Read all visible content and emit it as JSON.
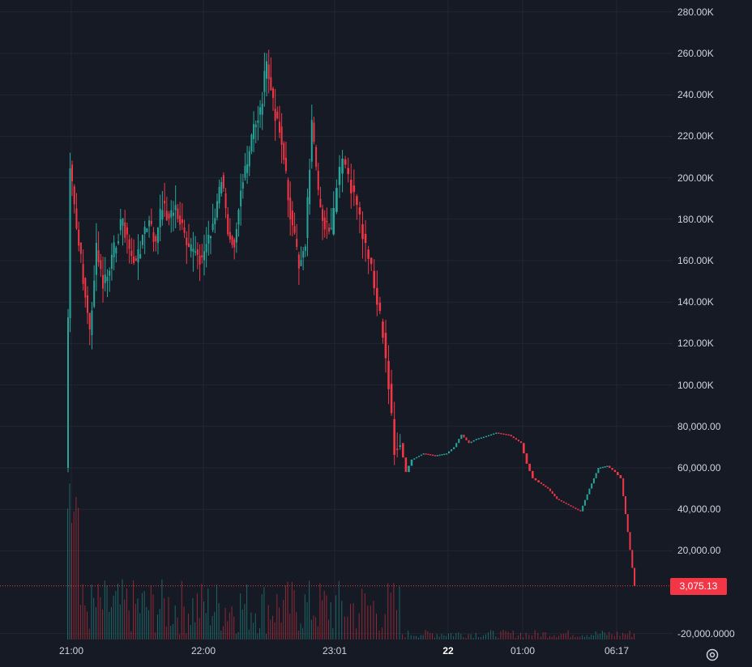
{
  "chart_data": {
    "type": "candlestick",
    "ylim": [
      -20000,
      290000
    ],
    "y_tick_labels": [
      {
        "value": 280000,
        "label": "280.00K"
      },
      {
        "value": 260000,
        "label": "260.00K"
      },
      {
        "value": 240000,
        "label": "240.00K"
      },
      {
        "value": 220000,
        "label": "220.00K"
      },
      {
        "value": 200000,
        "label": "200.00K"
      },
      {
        "value": 180000,
        "label": "180.00K"
      },
      {
        "value": 160000,
        "label": "160.00K"
      },
      {
        "value": 140000,
        "label": "140.00K"
      },
      {
        "value": 120000,
        "label": "120.00K"
      },
      {
        "value": 100000,
        "label": "100.00K"
      },
      {
        "value": 80000,
        "label": "80,000.00"
      },
      {
        "value": 60000,
        "label": "60,000.00"
      },
      {
        "value": 40000,
        "label": "40,000.00"
      },
      {
        "value": 20000,
        "label": "20,000.00"
      },
      {
        "value": -20000,
        "label": "-20,000.0000"
      }
    ],
    "x_tick_labels": [
      {
        "label": "21:00",
        "time": "21:00",
        "bold": false
      },
      {
        "label": "22:00",
        "time": "22:00",
        "bold": false
      },
      {
        "label": "23:01",
        "time": "23:01",
        "bold": false
      },
      {
        "label": "22",
        "time": "00:00",
        "bold": true
      },
      {
        "label": "01:00",
        "time": "01:00",
        "bold": false
      },
      {
        "label": "06:17",
        "time": "06:17",
        "bold": false
      }
    ],
    "last_price": 3075.13,
    "last_price_label": "3,075.13",
    "grid": true,
    "colors": {
      "up": "#26a69a",
      "down": "#f23645",
      "background": "#161a25",
      "grid": "#232632",
      "text": "#d1d4dc"
    },
    "price_path": [
      [
        "20:58",
        60000
      ],
      [
        "21:00",
        205000
      ],
      [
        "21:03",
        175000
      ],
      [
        "21:06",
        152000
      ],
      [
        "21:09",
        125000
      ],
      [
        "21:12",
        165000
      ],
      [
        "21:15",
        148000
      ],
      [
        "21:18",
        155000
      ],
      [
        "21:21",
        170000
      ],
      [
        "21:24",
        180000
      ],
      [
        "21:27",
        165000
      ],
      [
        "21:30",
        158000
      ],
      [
        "21:33",
        172000
      ],
      [
        "21:36",
        178000
      ],
      [
        "21:39",
        168000
      ],
      [
        "21:42",
        188000
      ],
      [
        "21:45",
        180000
      ],
      [
        "21:48",
        186000
      ],
      [
        "21:51",
        175000
      ],
      [
        "21:54",
        163000
      ],
      [
        "21:57",
        166000
      ],
      [
        "22:00",
        160000
      ],
      [
        "22:03",
        172000
      ],
      [
        "22:06",
        180000
      ],
      [
        "22:09",
        200000
      ],
      [
        "22:12",
        175000
      ],
      [
        "22:15",
        170000
      ],
      [
        "22:18",
        195000
      ],
      [
        "22:21",
        205000
      ],
      [
        "22:24",
        225000
      ],
      [
        "22:27",
        232000
      ],
      [
        "22:30",
        255000
      ],
      [
        "22:33",
        235000
      ],
      [
        "22:36",
        225000
      ],
      [
        "22:39",
        200000
      ],
      [
        "22:42",
        175000
      ],
      [
        "22:45",
        158000
      ],
      [
        "22:48",
        170000
      ],
      [
        "22:51",
        225000
      ],
      [
        "22:54",
        190000
      ],
      [
        "22:57",
        178000
      ],
      [
        "23:00",
        172000
      ],
      [
        "23:03",
        195000
      ],
      [
        "23:06",
        208000
      ],
      [
        "23:09",
        200000
      ],
      [
        "23:12",
        190000
      ],
      [
        "23:15",
        178000
      ],
      [
        "23:18",
        165000
      ],
      [
        "23:21",
        155000
      ],
      [
        "23:24",
        138000
      ],
      [
        "23:27",
        125000
      ],
      [
        "23:30",
        100000
      ],
      [
        "23:33",
        70000
      ],
      [
        "23:36",
        72000
      ],
      [
        "23:39",
        58000
      ],
      [
        "23:42",
        64000
      ],
      [
        "23:48",
        67000
      ],
      [
        "23:54",
        66000
      ],
      [
        "00:00",
        67000
      ],
      [
        "00:06",
        70000
      ],
      [
        "00:12",
        76000
      ],
      [
        "00:18",
        72000
      ],
      [
        "00:24",
        74000
      ],
      [
        "00:30",
        75000
      ],
      [
        "00:40",
        77000
      ],
      [
        "00:50",
        76000
      ],
      [
        "01:00",
        72000
      ],
      [
        "01:20",
        62000
      ],
      [
        "01:40",
        55000
      ],
      [
        "02:00",
        53000
      ],
      [
        "02:30",
        50000
      ],
      [
        "03:00",
        45000
      ],
      [
        "03:40",
        42000
      ],
      [
        "04:20",
        39000
      ],
      [
        "04:50",
        50000
      ],
      [
        "05:20",
        60000
      ],
      [
        "05:50",
        61000
      ],
      [
        "06:17",
        58000
      ],
      [
        "06:20",
        55000
      ],
      [
        "06:27",
        3075
      ]
    ]
  }
}
